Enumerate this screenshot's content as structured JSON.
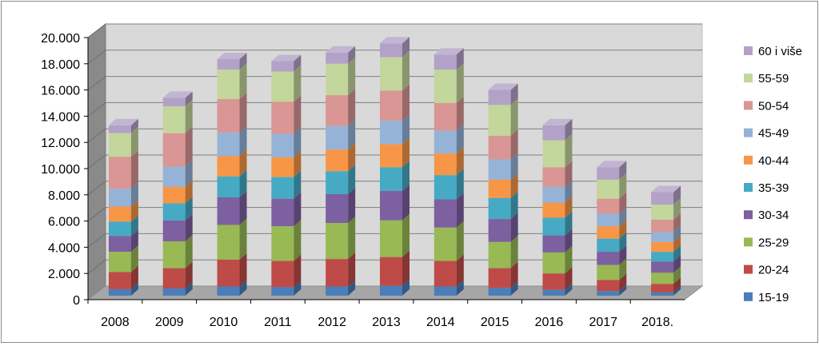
{
  "chart_data": {
    "type": "bar",
    "stacked": true,
    "three_d": true,
    "categories": [
      "2008",
      "2009",
      "2010",
      "2011",
      "2012",
      "2013",
      "2014",
      "2015",
      "2016",
      "2017",
      "2018."
    ],
    "ylim": [
      0,
      20000
    ],
    "yticks": [
      "0",
      "2.000",
      "4.000",
      "6.000",
      "8.000",
      "10.000",
      "12.000",
      "14.000",
      "16.000",
      "18.000",
      "20.000"
    ],
    "grid": true,
    "legend_position": "right",
    "series": [
      {
        "name": "15-19",
        "color": "#4a7ebb",
        "values": [
          500,
          550,
          700,
          650,
          700,
          750,
          700,
          600,
          450,
          350,
          250
        ]
      },
      {
        "name": "20-24",
        "color": "#be4b48",
        "values": [
          1300,
          1550,
          2050,
          2000,
          2100,
          2200,
          1950,
          1500,
          1250,
          850,
          650
        ]
      },
      {
        "name": "25-29",
        "color": "#98b954",
        "values": [
          1550,
          2050,
          2650,
          2650,
          2750,
          2800,
          2550,
          2000,
          1600,
          1150,
          850
        ]
      },
      {
        "name": "30-34",
        "color": "#7d60a0",
        "values": [
          1200,
          1600,
          2100,
          2100,
          2200,
          2250,
          2150,
          1750,
          1300,
          1000,
          850
        ]
      },
      {
        "name": "35-39",
        "color": "#46aac5",
        "values": [
          1100,
          1300,
          1600,
          1650,
          1750,
          1800,
          1850,
          1600,
          1350,
          1000,
          750
        ]
      },
      {
        "name": "40-44",
        "color": "#f79646",
        "values": [
          1150,
          1250,
          1550,
          1500,
          1650,
          1750,
          1650,
          1400,
          1150,
          950,
          750
        ]
      },
      {
        "name": "45-49",
        "color": "#95b3d7",
        "values": [
          1350,
          1550,
          1800,
          1800,
          1800,
          1800,
          1750,
          1550,
          1200,
          950,
          750
        ]
      },
      {
        "name": "50-54",
        "color": "#d99694",
        "values": [
          2450,
          2550,
          2550,
          2450,
          2350,
          2300,
          2100,
          1800,
          1500,
          1150,
          950
        ]
      },
      {
        "name": "55-59",
        "color": "#c3d69b",
        "values": [
          1800,
          2050,
          2250,
          2300,
          2400,
          2550,
          2550,
          2350,
          2050,
          1450,
          1150
        ]
      },
      {
        "name": "60 i više",
        "color": "#b3a2c7",
        "values": [
          600,
          650,
          800,
          800,
          850,
          1050,
          1150,
          1150,
          1150,
          950,
          950
        ]
      }
    ]
  }
}
